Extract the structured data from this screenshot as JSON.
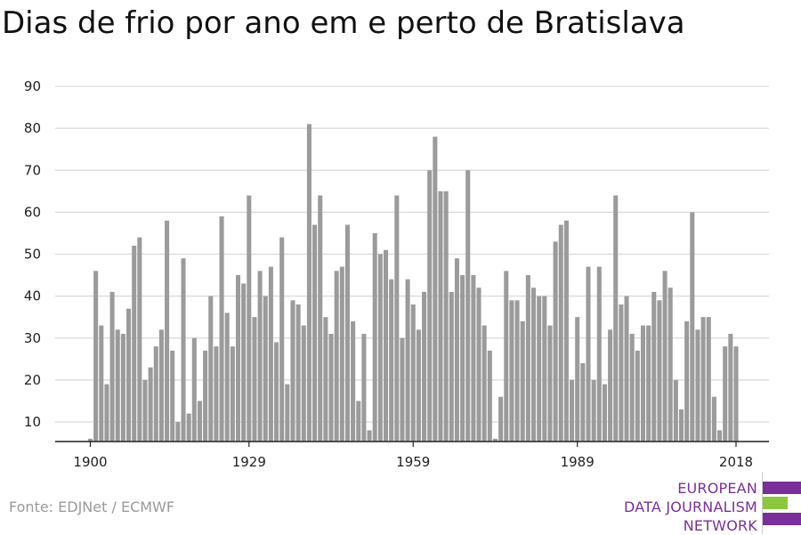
{
  "title": "Dias de frio por ano em e perto de Bratislava",
  "source": "Fonte: EDJNet / ECMWF",
  "logo": {
    "lines": [
      "EUROPEAN",
      "DATA JOURNALISM",
      "NETWORK"
    ],
    "colors": {
      "purple": "#7a2f9a",
      "green": "#8dc63f"
    }
  },
  "colors": {
    "bar": "#9b9b9b",
    "grid": "#d9d9d9",
    "axis": "#222222"
  },
  "chart_data": {
    "type": "bar",
    "title": "Dias de frio por ano em e perto de Bratislava",
    "xlabel": "",
    "ylabel": "",
    "ylim": [
      5,
      90
    ],
    "yticks": [
      10,
      20,
      30,
      40,
      50,
      60,
      70,
      80,
      90
    ],
    "xticks": [
      1900,
      1929,
      1959,
      1989,
      2018
    ],
    "grid": true,
    "x": [
      1900,
      1901,
      1902,
      1903,
      1904,
      1905,
      1906,
      1907,
      1908,
      1909,
      1910,
      1911,
      1912,
      1913,
      1914,
      1915,
      1916,
      1917,
      1918,
      1919,
      1920,
      1921,
      1922,
      1923,
      1924,
      1925,
      1926,
      1927,
      1928,
      1929,
      1930,
      1931,
      1932,
      1933,
      1934,
      1935,
      1936,
      1937,
      1938,
      1939,
      1940,
      1941,
      1942,
      1943,
      1944,
      1945,
      1946,
      1947,
      1948,
      1949,
      1950,
      1951,
      1952,
      1953,
      1954,
      1955,
      1956,
      1957,
      1958,
      1959,
      1960,
      1961,
      1962,
      1963,
      1964,
      1965,
      1966,
      1967,
      1968,
      1969,
      1970,
      1971,
      1972,
      1973,
      1974,
      1975,
      1976,
      1977,
      1978,
      1979,
      1980,
      1981,
      1982,
      1983,
      1984,
      1985,
      1986,
      1987,
      1988,
      1989,
      1990,
      1991,
      1992,
      1993,
      1994,
      1995,
      1996,
      1997,
      1998,
      1999,
      2000,
      2001,
      2002,
      2003,
      2004,
      2005,
      2006,
      2007,
      2008,
      2009,
      2010,
      2011,
      2012,
      2013,
      2014,
      2015,
      2016,
      2017,
      2018
    ],
    "values": [
      6,
      46,
      33,
      19,
      41,
      32,
      31,
      37,
      52,
      54,
      20,
      23,
      28,
      32,
      58,
      27,
      10,
      49,
      12,
      30,
      15,
      27,
      40,
      28,
      59,
      36,
      28,
      45,
      43,
      64,
      35,
      46,
      40,
      47,
      29,
      54,
      19,
      39,
      38,
      33,
      81,
      57,
      64,
      35,
      31,
      46,
      47,
      57,
      34,
      15,
      31,
      8,
      55,
      50,
      51,
      44,
      64,
      30,
      44,
      38,
      32,
      41,
      70,
      78,
      65,
      65,
      41,
      49,
      45,
      70,
      45,
      42,
      33,
      27,
      6,
      16,
      46,
      39,
      39,
      34,
      45,
      42,
      40,
      40,
      33,
      53,
      57,
      58,
      20,
      35,
      24,
      47,
      20,
      47,
      19,
      32,
      64,
      38,
      40,
      31,
      27,
      33,
      33,
      41,
      39,
      46,
      42,
      20,
      13,
      34,
      60,
      32,
      35,
      35,
      16,
      8,
      28,
      31,
      28
    ]
  }
}
